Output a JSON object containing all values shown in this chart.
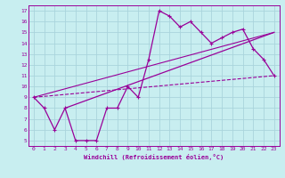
{
  "xlabel": "Windchill (Refroidissement éolien,°C)",
  "bg_color": "#c8eef0",
  "grid_color": "#aad4dc",
  "line_color": "#990099",
  "xlim": [
    -0.5,
    23.5
  ],
  "ylim": [
    4.5,
    17.5
  ],
  "xticks": [
    0,
    1,
    2,
    3,
    4,
    5,
    6,
    7,
    8,
    9,
    10,
    11,
    12,
    13,
    14,
    15,
    16,
    17,
    18,
    19,
    20,
    21,
    22,
    23
  ],
  "yticks": [
    5,
    6,
    7,
    8,
    9,
    10,
    11,
    12,
    13,
    14,
    15,
    16,
    17
  ],
  "main_line_x": [
    0,
    1,
    2,
    3,
    4,
    5,
    6,
    7,
    8,
    9,
    10,
    11,
    12,
    13,
    14,
    15,
    16,
    17,
    18,
    19,
    20,
    21,
    22,
    23
  ],
  "main_line_y": [
    9,
    8,
    6,
    8,
    5,
    5,
    5,
    8,
    8,
    10,
    9,
    12.5,
    17,
    16.5,
    15.5,
    16,
    15,
    14,
    14.5,
    15,
    15.3,
    13.5,
    12.5,
    11
  ],
  "trend_line1_x": [
    0,
    23
  ],
  "trend_line1_y": [
    9.0,
    11.0
  ],
  "trend_line2_x": [
    3,
    23
  ],
  "trend_line2_y": [
    8.0,
    15.0
  ],
  "trend_line3_x": [
    0,
    23
  ],
  "trend_line3_y": [
    9.0,
    15.0
  ]
}
